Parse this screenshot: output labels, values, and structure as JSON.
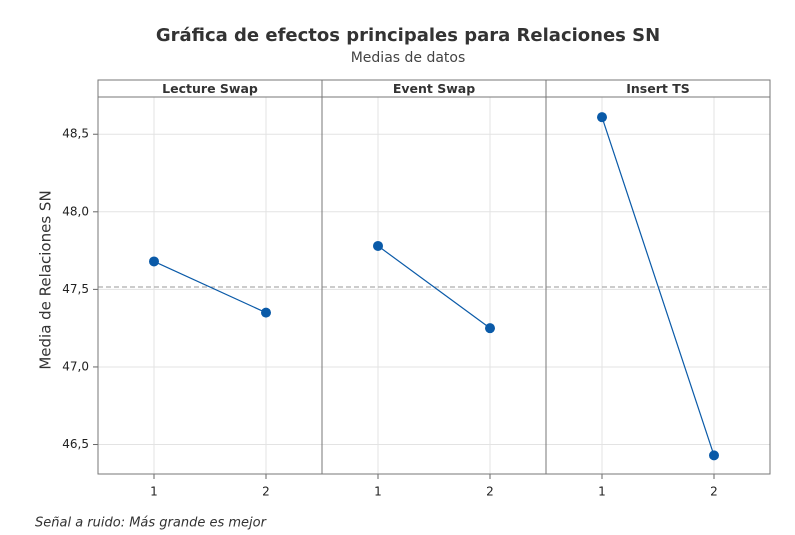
{
  "chart_data": {
    "type": "line",
    "title": "Gráfica de efectos principales para Relaciones SN",
    "subtitle": "Medias de datos",
    "ylabel": "Media de Relaciones SN",
    "footnote": "Señal a ruido: Más grande es mejor",
    "color": "#0a5aa8",
    "grid": true,
    "reference_line": 47.515,
    "ylim": [
      46.31,
      48.74
    ],
    "yticks": [
      {
        "value": 46.5,
        "label": "46,5"
      },
      {
        "value": 47.0,
        "label": "47,0"
      },
      {
        "value": 47.5,
        "label": "47,5"
      },
      {
        "value": 48.0,
        "label": "48,0"
      },
      {
        "value": 48.5,
        "label": "48,5"
      }
    ],
    "panels": [
      {
        "title": "Lecture Swap",
        "categories": [
          "1",
          "2"
        ],
        "values": [
          47.68,
          47.35
        ]
      },
      {
        "title": "Event Swap",
        "categories": [
          "1",
          "2"
        ],
        "values": [
          47.78,
          47.25
        ]
      },
      {
        "title": "Insert TS",
        "categories": [
          "1",
          "2"
        ],
        "values": [
          48.61,
          46.43
        ]
      }
    ]
  }
}
